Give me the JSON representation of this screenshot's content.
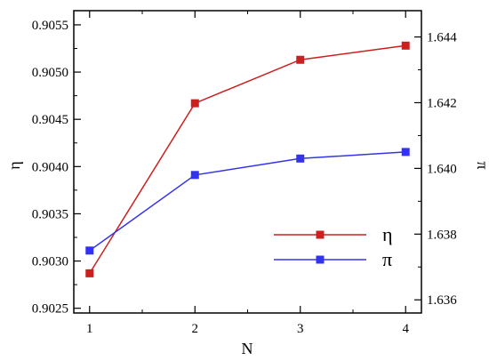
{
  "chart_data": {
    "type": "line",
    "title": "",
    "xlabel": "N",
    "ylabel_left": "η",
    "ylabel_right": "π",
    "x": [
      1,
      2,
      3,
      4
    ],
    "xlim": [
      0.85,
      4.15
    ],
    "xticks": [
      "1",
      "2",
      "3",
      "4"
    ],
    "ylim_left": [
      0.90245,
      0.90565
    ],
    "yticks_left": [
      "0.9025",
      "0.9030",
      "0.9035",
      "0.9040",
      "0.9045",
      "0.9050",
      "0.9055"
    ],
    "ylim_right": [
      1.6356,
      1.6448
    ],
    "yticks_right": [
      "1.636",
      "1.638",
      "1.640",
      "1.642",
      "1.644"
    ],
    "grid": false,
    "legend_position": "center-right",
    "series": [
      {
        "name": "η",
        "axis": "left",
        "color": "#cc1f1f",
        "marker": "square",
        "values": [
          0.90287,
          0.90467,
          0.90513,
          0.90528
        ]
      },
      {
        "name": "π",
        "axis": "right",
        "color": "#3333ee",
        "marker": "square",
        "values": [
          1.6375,
          1.6398,
          1.6403,
          1.6405
        ]
      }
    ]
  }
}
